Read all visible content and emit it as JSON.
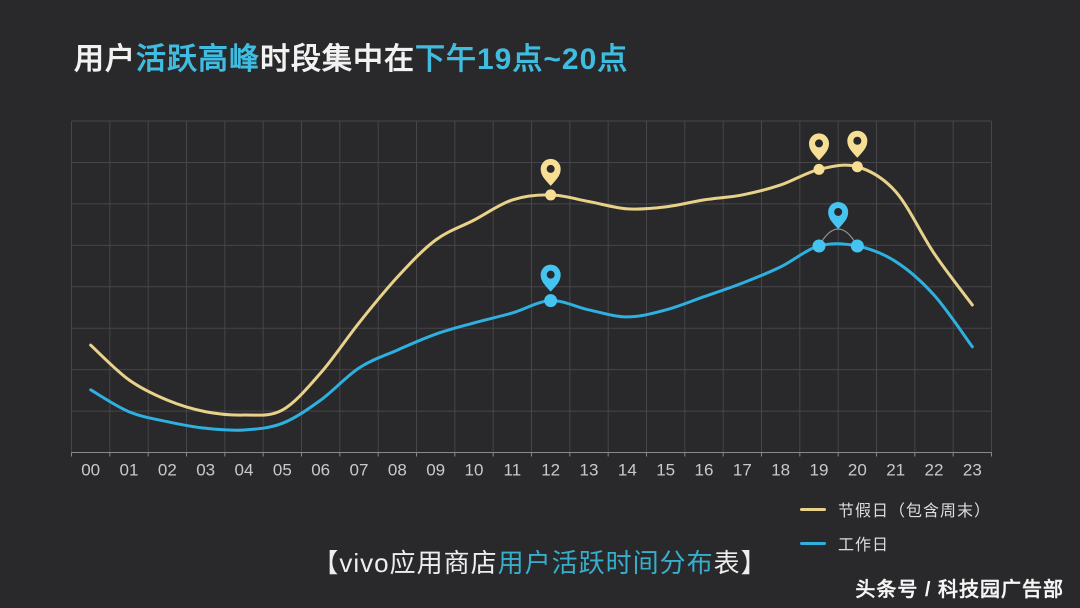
{
  "title": {
    "segments": [
      {
        "text": "用户",
        "accent": false
      },
      {
        "text": "活跃高峰",
        "accent": true
      },
      {
        "text": "时段集中在",
        "accent": false
      },
      {
        "text": "下午19点~20点",
        "accent": true
      }
    ]
  },
  "caption": {
    "segments": [
      {
        "text": "【vivo应用商店",
        "accent": false
      },
      {
        "text": "用户活跃时间分布",
        "accent": true
      },
      {
        "text": "表】",
        "accent": false
      }
    ]
  },
  "watermark": "头条号 / 科技园广告部",
  "colors": {
    "background": "#29292b",
    "grid": "#46464a",
    "axis": "#88888c",
    "tick_label": "#c9c9cb",
    "title_accent": "#3fbcdf",
    "caption_accent": "#37aecb",
    "arc": "#b9b9b9"
  },
  "chart_data": {
    "type": "line",
    "x": [
      "00",
      "01",
      "02",
      "03",
      "04",
      "05",
      "06",
      "07",
      "08",
      "09",
      "10",
      "11",
      "12",
      "13",
      "14",
      "15",
      "16",
      "17",
      "18",
      "19",
      "20",
      "21",
      "22",
      "23"
    ],
    "xlabel": "",
    "ylabel": "",
    "ylim": [
      0,
      100
    ],
    "grid": true,
    "legend_position": "bottom-right",
    "series": [
      {
        "id": "holidays",
        "name": "节假日（包含周末）",
        "color": "#e8d28a",
        "marker_color": "#f6df95",
        "values": [
          32.4,
          21.9,
          15.8,
          12.3,
          11.3,
          12.8,
          24.0,
          39.1,
          52.9,
          64.1,
          70.1,
          76.2,
          77.7,
          75.7,
          73.5,
          74.1,
          76.2,
          77.7,
          80.7,
          85.4,
          86.2,
          78.7,
          60.1,
          44.5
        ],
        "markers": {
          "dots": [
            12,
            19,
            20
          ],
          "pins": [
            12,
            19,
            20
          ]
        }
      },
      {
        "id": "workdays",
        "name": "工作日",
        "color": "#2eb0e0",
        "marker_color": "#45c4f2",
        "values": [
          18.9,
          12.3,
          9.3,
          7.3,
          6.8,
          8.8,
          15.8,
          25.5,
          30.9,
          35.7,
          39.1,
          42.1,
          45.8,
          43.0,
          40.9,
          43.0,
          47.0,
          51.1,
          56.0,
          62.3,
          62.3,
          57.6,
          47.5,
          31.9
        ],
        "markers": {
          "dots": [
            12,
            19,
            20
          ],
          "pins": [
            12,
            19.5
          ],
          "arc": [
            19,
            20
          ]
        }
      }
    ]
  }
}
